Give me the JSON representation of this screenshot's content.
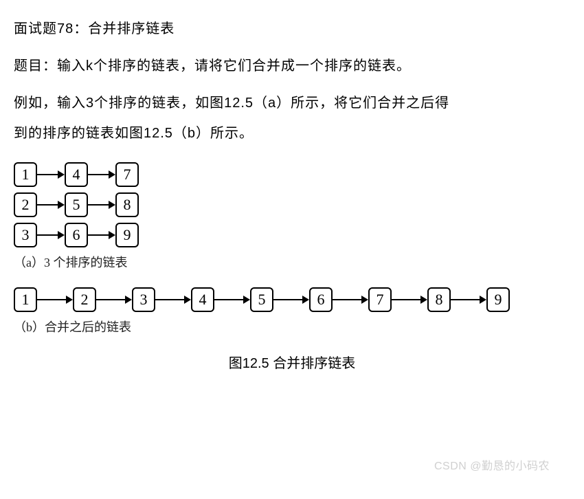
{
  "title_line": "面试题78：合并排序链表",
  "problem_line": "题目：输入k个排序的链表，请将它们合并成一个排序的链表。",
  "example_line1": "例如，输入3个排序的链表，如图12.5（a）所示，将它们合并之后得",
  "example_line2": "到的排序的链表如图12.5（b）所示。",
  "diagram_a": {
    "lists": [
      {
        "nodes": [
          "1",
          "4",
          "7"
        ]
      },
      {
        "nodes": [
          "2",
          "5",
          "8"
        ]
      },
      {
        "nodes": [
          "3",
          "6",
          "9"
        ]
      }
    ],
    "caption": "（a）3 个排序的链表"
  },
  "diagram_b": {
    "list": {
      "nodes": [
        "1",
        "2",
        "3",
        "4",
        "5",
        "6",
        "7",
        "8",
        "9"
      ]
    },
    "caption": "（b）合并之后的链表"
  },
  "figure_caption": "图12.5 合并排序链表",
  "watermark": "CSDN @勤恳的小码农",
  "colors": {
    "text": "#000000",
    "background": "#ffffff",
    "node_border": "#000000",
    "watermark": "#d0d0d0"
  },
  "style": {
    "node_border_radius": 6,
    "node_border_width": 2,
    "node_font": "Times New Roman",
    "node_font_size": 22,
    "body_font_size": 20,
    "caption_font_size": 18,
    "arrow_head_size": 10
  }
}
